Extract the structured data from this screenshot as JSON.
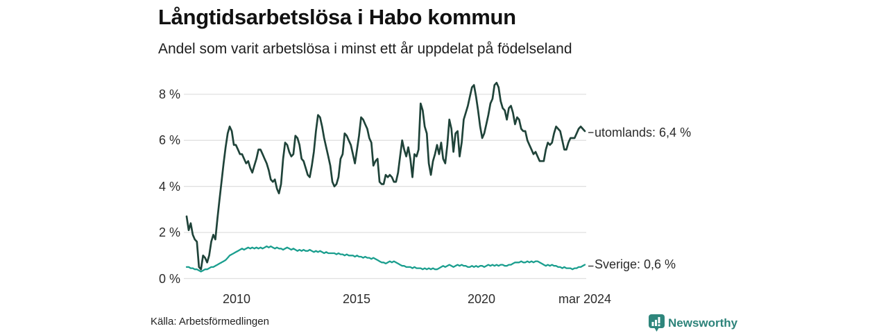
{
  "header": {
    "title": "Långtidsarbetslösa i Habo kommun",
    "subtitle": "Andel som varit arbetslösa i minst ett år uppdelat på födelseland"
  },
  "footer": {
    "source": "Källa: Arbetsförmedlingen",
    "brand": "Newsworthy"
  },
  "colors": {
    "grid": "#e0e0e0",
    "label_dash": "#4d4d4d",
    "utomlands_line": "#1f4339",
    "sverige_line": "#1a9e8e",
    "brand_teal": "#2d837a"
  },
  "chart_data": {
    "type": "line",
    "title": "Långtidsarbetslösa i Habo kommun",
    "subtitle": "Andel som varit arbetslösa i minst ett år uppdelat på födelseland",
    "x_interval": "monthly",
    "x_start": "2008-01",
    "x_end": "2024-03",
    "x_tick_labels": [
      "2010",
      "2015",
      "2020",
      "mar 2024"
    ],
    "y_tick_labels": [
      "0 %",
      "2 %",
      "4 %",
      "6 %",
      "8 %"
    ],
    "y_ticks": [
      0,
      2,
      4,
      6,
      8
    ],
    "ylim": [
      0,
      8.8
    ],
    "grid": "horizontal",
    "legend_position": "end-of-line-labels",
    "series": [
      {
        "name": "utomlands",
        "end_label": "utomlands: 6,4 %",
        "last_value": 6.4,
        "color": "#1f4339",
        "values": [
          2.7,
          2.1,
          2.4,
          1.9,
          1.7,
          1.6,
          0.5,
          0.4,
          1.0,
          0.9,
          0.7,
          1.0,
          1.6,
          1.9,
          1.7,
          2.6,
          3.4,
          4.2,
          5.0,
          5.7,
          6.3,
          6.6,
          6.4,
          5.8,
          5.8,
          5.6,
          5.4,
          5.4,
          5.2,
          5.0,
          5.1,
          4.8,
          4.6,
          4.9,
          5.2,
          5.6,
          5.6,
          5.4,
          5.2,
          5.0,
          4.7,
          4.3,
          4.2,
          4.3,
          3.9,
          3.7,
          4.1,
          5.2,
          5.9,
          5.8,
          5.5,
          5.3,
          5.4,
          6.2,
          6.1,
          5.8,
          5.2,
          5.1,
          4.8,
          4.5,
          4.4,
          4.9,
          5.5,
          6.4,
          7.1,
          7.0,
          6.6,
          6.1,
          5.7,
          5.3,
          4.9,
          4.2,
          4.0,
          4.1,
          4.4,
          5.2,
          5.4,
          6.3,
          6.2,
          6.0,
          5.8,
          5.4,
          5.0,
          5.6,
          6.2,
          7.0,
          6.9,
          6.7,
          6.5,
          6.1,
          5.9,
          4.9,
          5.1,
          5.2,
          4.2,
          4.1,
          4.1,
          4.5,
          4.4,
          4.5,
          4.4,
          4.2,
          4.2,
          4.6,
          5.3,
          6.0,
          5.6,
          5.3,
          5.7,
          5.2,
          4.4,
          5.4,
          5.3,
          5.6,
          7.6,
          7.3,
          6.6,
          6.3,
          5.0,
          4.5,
          5.1,
          5.4,
          5.8,
          5.4,
          5.9,
          5.2,
          5.0,
          5.8,
          6.9,
          6.5,
          5.5,
          6.3,
          6.4,
          5.3,
          5.9,
          6.9,
          7.2,
          7.5,
          7.9,
          8.3,
          8.4,
          7.9,
          7.3,
          6.6,
          6.1,
          6.3,
          6.7,
          7.1,
          7.6,
          7.8,
          8.4,
          8.5,
          8.3,
          7.7,
          7.4,
          7.3,
          6.9,
          7.4,
          7.5,
          7.2,
          6.7,
          7.0,
          6.9,
          6.5,
          6.4,
          6.4,
          6.0,
          5.8,
          5.6,
          5.4,
          5.5,
          5.3,
          5.1,
          5.1,
          5.1,
          5.6,
          5.9,
          5.8,
          5.9,
          6.3,
          6.6,
          6.5,
          6.4,
          6.0,
          5.6,
          5.6,
          5.9,
          6.1,
          6.1,
          6.1,
          6.3,
          6.5,
          6.6,
          6.5,
          6.4
        ]
      },
      {
        "name": "Sverige",
        "end_label": "Sverige: 0,6 %",
        "last_value": 0.6,
        "color": "#1a9e8e",
        "values": [
          0.5,
          0.5,
          0.45,
          0.45,
          0.4,
          0.4,
          0.35,
          0.3,
          0.35,
          0.4,
          0.4,
          0.45,
          0.5,
          0.5,
          0.55,
          0.6,
          0.65,
          0.7,
          0.75,
          0.8,
          0.9,
          1.0,
          1.05,
          1.1,
          1.15,
          1.2,
          1.25,
          1.3,
          1.25,
          1.3,
          1.35,
          1.3,
          1.35,
          1.3,
          1.35,
          1.3,
          1.35,
          1.3,
          1.35,
          1.4,
          1.35,
          1.4,
          1.35,
          1.3,
          1.35,
          1.3,
          1.3,
          1.25,
          1.3,
          1.35,
          1.3,
          1.25,
          1.3,
          1.25,
          1.2,
          1.25,
          1.2,
          1.25,
          1.2,
          1.2,
          1.25,
          1.2,
          1.15,
          1.2,
          1.15,
          1.2,
          1.15,
          1.1,
          1.15,
          1.1,
          1.1,
          1.1,
          1.1,
          1.05,
          1.1,
          1.05,
          1.05,
          1.0,
          1.05,
          1.0,
          1.0,
          1.0,
          0.95,
          1.0,
          0.95,
          0.95,
          0.9,
          0.95,
          0.9,
          0.9,
          0.85,
          0.9,
          0.85,
          0.8,
          0.75,
          0.7,
          0.7,
          0.65,
          0.7,
          0.75,
          0.7,
          0.75,
          0.7,
          0.65,
          0.6,
          0.55,
          0.55,
          0.5,
          0.5,
          0.5,
          0.45,
          0.5,
          0.45,
          0.45,
          0.45,
          0.4,
          0.45,
          0.4,
          0.45,
          0.4,
          0.45,
          0.4,
          0.4,
          0.45,
          0.5,
          0.55,
          0.5,
          0.55,
          0.6,
          0.55,
          0.5,
          0.55,
          0.6,
          0.55,
          0.6,
          0.55,
          0.55,
          0.5,
          0.5,
          0.55,
          0.5,
          0.55,
          0.5,
          0.55,
          0.55,
          0.5,
          0.55,
          0.6,
          0.55,
          0.6,
          0.55,
          0.6,
          0.55,
          0.6,
          0.6,
          0.55,
          0.55,
          0.6,
          0.6,
          0.65,
          0.7,
          0.7,
          0.7,
          0.75,
          0.7,
          0.7,
          0.75,
          0.7,
          0.75,
          0.7,
          0.75,
          0.75,
          0.7,
          0.65,
          0.6,
          0.55,
          0.6,
          0.55,
          0.6,
          0.55,
          0.55,
          0.5,
          0.5,
          0.45,
          0.5,
          0.45,
          0.45,
          0.45,
          0.4,
          0.45,
          0.45,
          0.5,
          0.5,
          0.55,
          0.6
        ]
      }
    ]
  }
}
